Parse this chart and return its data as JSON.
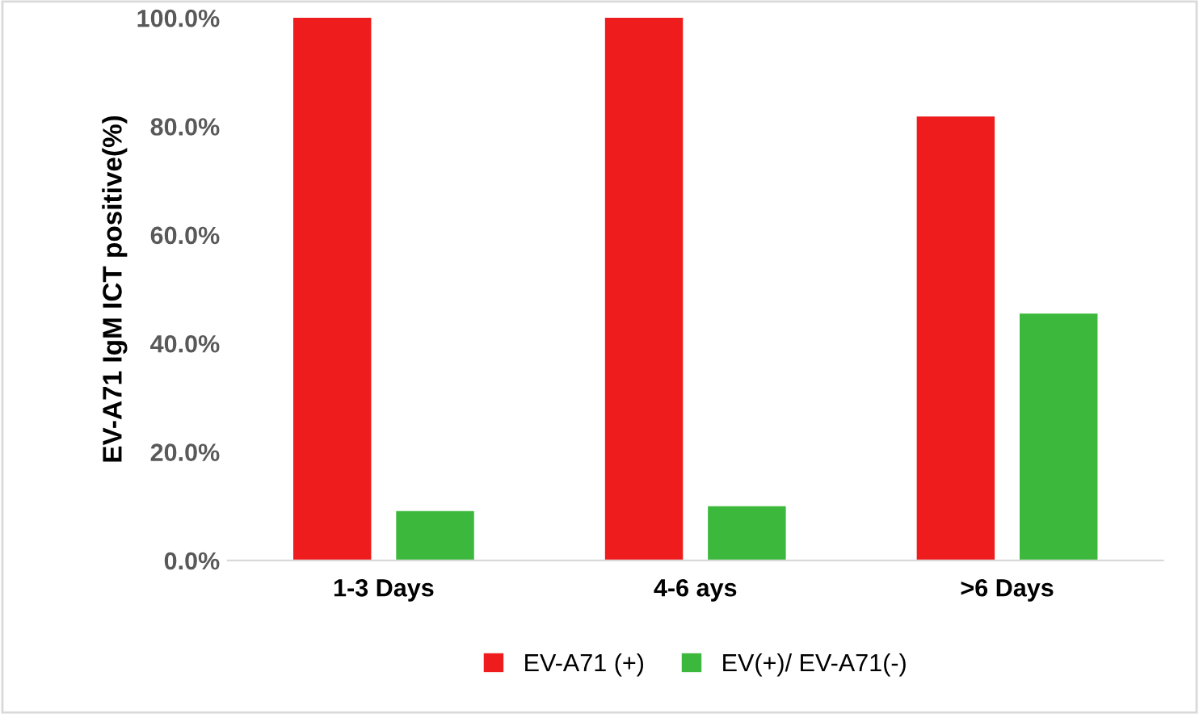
{
  "chart_data": {
    "type": "bar",
    "ylabel": "EV-A71 IgM ICT positive(%)",
    "categories": [
      "1-3 Days",
      "4-6 ays",
      ">6 Days"
    ],
    "series": [
      {
        "name": "EV-A71 (+)",
        "color": "#ee1c1c",
        "values": [
          100,
          100,
          81.8
        ]
      },
      {
        "name": "EV(+)/ EV-A71(-)",
        "color": "#3cb93c",
        "values": [
          9.1,
          10,
          45.5
        ]
      }
    ],
    "ylim": [
      0,
      100
    ],
    "yticks": [
      {
        "value": 0,
        "label": "0.0%"
      },
      {
        "value": 20,
        "label": "20.0%"
      },
      {
        "value": 40,
        "label": "40.0%"
      },
      {
        "value": 60,
        "label": "60.0%"
      },
      {
        "value": 80,
        "label": "80.0%"
      },
      {
        "value": 100,
        "label": "100.0%"
      }
    ],
    "grid": false,
    "legend": "bottom"
  }
}
